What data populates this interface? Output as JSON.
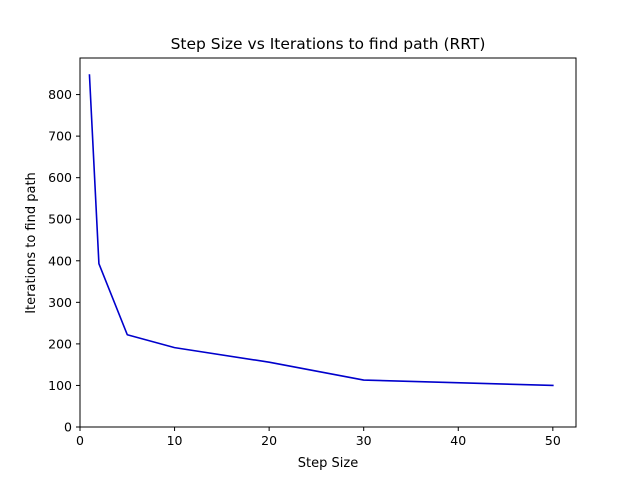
{
  "chart_data": {
    "type": "line",
    "title": "Step Size vs Iterations to find path (RRT)",
    "xlabel": "Step Size",
    "ylabel": "Iterations to find path",
    "xlim": [
      0,
      52.45
    ],
    "ylim": [
      0,
      888
    ],
    "xticks": [
      0,
      10,
      20,
      30,
      40,
      50
    ],
    "yticks": [
      0,
      100,
      200,
      300,
      400,
      500,
      600,
      700,
      800
    ],
    "grid": false,
    "legend": "none",
    "series": [
      {
        "color": "#0000cc",
        "x": [
          1,
          2,
          5,
          10,
          20,
          30,
          50
        ],
        "y": [
          847,
          393,
          222,
          191,
          156,
          113,
          100
        ]
      }
    ]
  }
}
